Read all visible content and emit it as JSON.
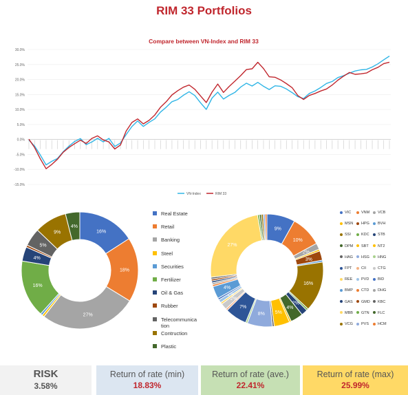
{
  "header": {
    "title": "RIM 33 Portfolios"
  },
  "chart_data": [
    {
      "type": "line",
      "title": "Compare between VN-Index  and RIM 33",
      "y_ticks": [
        "30.0%",
        "25.0%",
        "20.0%",
        "15.0%",
        "10.0%",
        "5.0%",
        "0.0%",
        "-5.0%",
        "-10.0%",
        "-15.0%"
      ],
      "ylim": [
        -15,
        30
      ],
      "legend_position": "bottom",
      "series": [
        {
          "name": "VN-Index",
          "color": "#2fb5e6",
          "values": [
            -0.2,
            -2.5,
            -5.5,
            -8.5,
            -7.0,
            -6.0,
            -4.0,
            -2.5,
            -1.0,
            0.2,
            -1.5,
            -0.5,
            0.5,
            -1.0,
            0.0,
            -2.5,
            -1.0,
            2.0,
            4.5,
            6.0,
            4.0,
            5.5,
            7.0,
            9.5,
            11.0,
            12.5,
            13.0,
            14.5,
            16.0,
            15.0,
            12.5,
            10.0,
            13.5,
            15.5,
            13.5,
            15.0,
            16.0,
            17.5,
            18.5,
            17.5,
            19.0,
            18.0,
            17.0,
            18.0,
            17.5,
            16.5,
            15.5,
            14.5,
            14.0,
            15.5,
            16.0,
            17.0,
            18.5,
            19.5,
            21.0,
            21.5,
            22.0,
            22.5,
            23.0,
            23.5,
            24.5,
            25.5,
            26.5,
            27.5
          ]
        },
        {
          "name": "RIM 33",
          "color": "#c0262d",
          "values": [
            -0.2,
            -3.0,
            -6.5,
            -9.5,
            -8.0,
            -6.5,
            -4.5,
            -3.0,
            -1.5,
            0.0,
            -1.0,
            0.5,
            1.0,
            -0.5,
            -1.0,
            -3.0,
            -1.5,
            3.0,
            5.5,
            6.5,
            5.0,
            6.5,
            8.5,
            11.0,
            12.5,
            14.5,
            16.0,
            17.5,
            18.5,
            17.0,
            14.5,
            12.0,
            15.5,
            18.5,
            16.0,
            18.0,
            19.5,
            21.0,
            23.0,
            23.5,
            26.0,
            24.0,
            21.0,
            20.5,
            19.5,
            18.5,
            17.5,
            15.0,
            13.5,
            14.5,
            15.0,
            16.0,
            17.0,
            18.5,
            20.0,
            21.0,
            22.0,
            21.5,
            22.0,
            22.5,
            23.5,
            24.0,
            25.0,
            25.5
          ]
        }
      ]
    },
    {
      "type": "pie",
      "categories": [
        "Real Estate",
        "Retail",
        "Banking",
        "Steel",
        "Securities",
        "Fertilizer",
        "Oil & Gas",
        "Rubber",
        "Telecommunication",
        "Contruction",
        "Plastic"
      ],
      "values": [
        16,
        18,
        27,
        0.6,
        0.6,
        16,
        4,
        0.6,
        5,
        9,
        4
      ],
      "labels": [
        "16%",
        "18%",
        "27%",
        "",
        "",
        "16%",
        "4%",
        "",
        "5%",
        "9%",
        "4%"
      ],
      "colors": [
        "#4472c4",
        "#ed7d31",
        "#a5a5a5",
        "#ffc000",
        "#5b9bd5",
        "#70ad47",
        "#264478",
        "#9e480e",
        "#636363",
        "#997300",
        "#43682b"
      ]
    },
    {
      "type": "pie",
      "categories": [
        "VIC",
        "VNM",
        "VCB",
        "MSN",
        "HPG",
        "BVH",
        "SSI",
        "KDC",
        "STB",
        "DPM",
        "SBT",
        "NT2",
        "HAG",
        "HSG",
        "HNG",
        "FPT",
        "CII",
        "CTG",
        "REE",
        "PVD",
        "BID",
        "BMP",
        "CTD",
        "DHG",
        "GAS",
        "GMD",
        "KBC",
        "MBB",
        "GTN",
        "FLC",
        "VCG",
        "PVS",
        "HCM"
      ],
      "values": [
        9,
        10,
        2,
        0.6,
        3,
        0.6,
        16,
        0.6,
        2,
        4,
        0.6,
        5,
        0.6,
        8,
        0.6,
        7,
        0.6,
        2,
        0.6,
        1,
        0.6,
        4,
        0.6,
        0.6,
        0.6,
        0.6,
        0.6,
        27,
        0.6,
        0.6,
        0.6,
        0.6,
        0.6
      ],
      "labels": [
        "9%",
        "10%",
        "2%",
        "",
        "3%",
        "",
        "16%",
        "",
        "2%",
        "4%",
        "",
        "5%",
        "",
        "8%",
        "",
        "7%",
        "",
        "2%",
        "",
        "1%",
        "",
        "4%",
        "",
        "",
        "",
        "",
        "",
        "27%",
        "",
        "",
        "",
        "",
        ""
      ],
      "colors": [
        "#4472c4",
        "#ed7d31",
        "#a5a5a5",
        "#ffc000",
        "#9e480e",
        "#5b9bd5",
        "#997300",
        "#70ad47",
        "#264478",
        "#43682b",
        "#ffc000",
        "#ffc000",
        "#636363",
        "#8faadc",
        "#a9d18e",
        "#2e5597",
        "#f4b183",
        "#c9c9c9",
        "#ffd966",
        "#9dc3e6",
        "#4472c4",
        "#5b9bd5",
        "#ed7d31",
        "#a5a5a5",
        "#264478",
        "#9e480e",
        "#636363",
        "#ffd966",
        "#70ad47",
        "#43682b",
        "#997300",
        "#8faadc",
        "#ed7d31"
      ]
    }
  ],
  "stats": {
    "risk": {
      "label": "RISK",
      "value": "3.58%",
      "bg": "#f2f2f2",
      "color": "#555555"
    },
    "min": {
      "label": "Return of rate (min)",
      "value": "18.83%",
      "bg": "#dce6f1",
      "color": "#c0262d"
    },
    "ave": {
      "label": "Return of rate (ave.)",
      "value": "22.41%",
      "bg": "#c6e0b4",
      "color": "#c0262d"
    },
    "max": {
      "label": "Return of rate (max)",
      "value": "25.99%",
      "bg": "#ffd966",
      "color": "#c0262d"
    }
  }
}
